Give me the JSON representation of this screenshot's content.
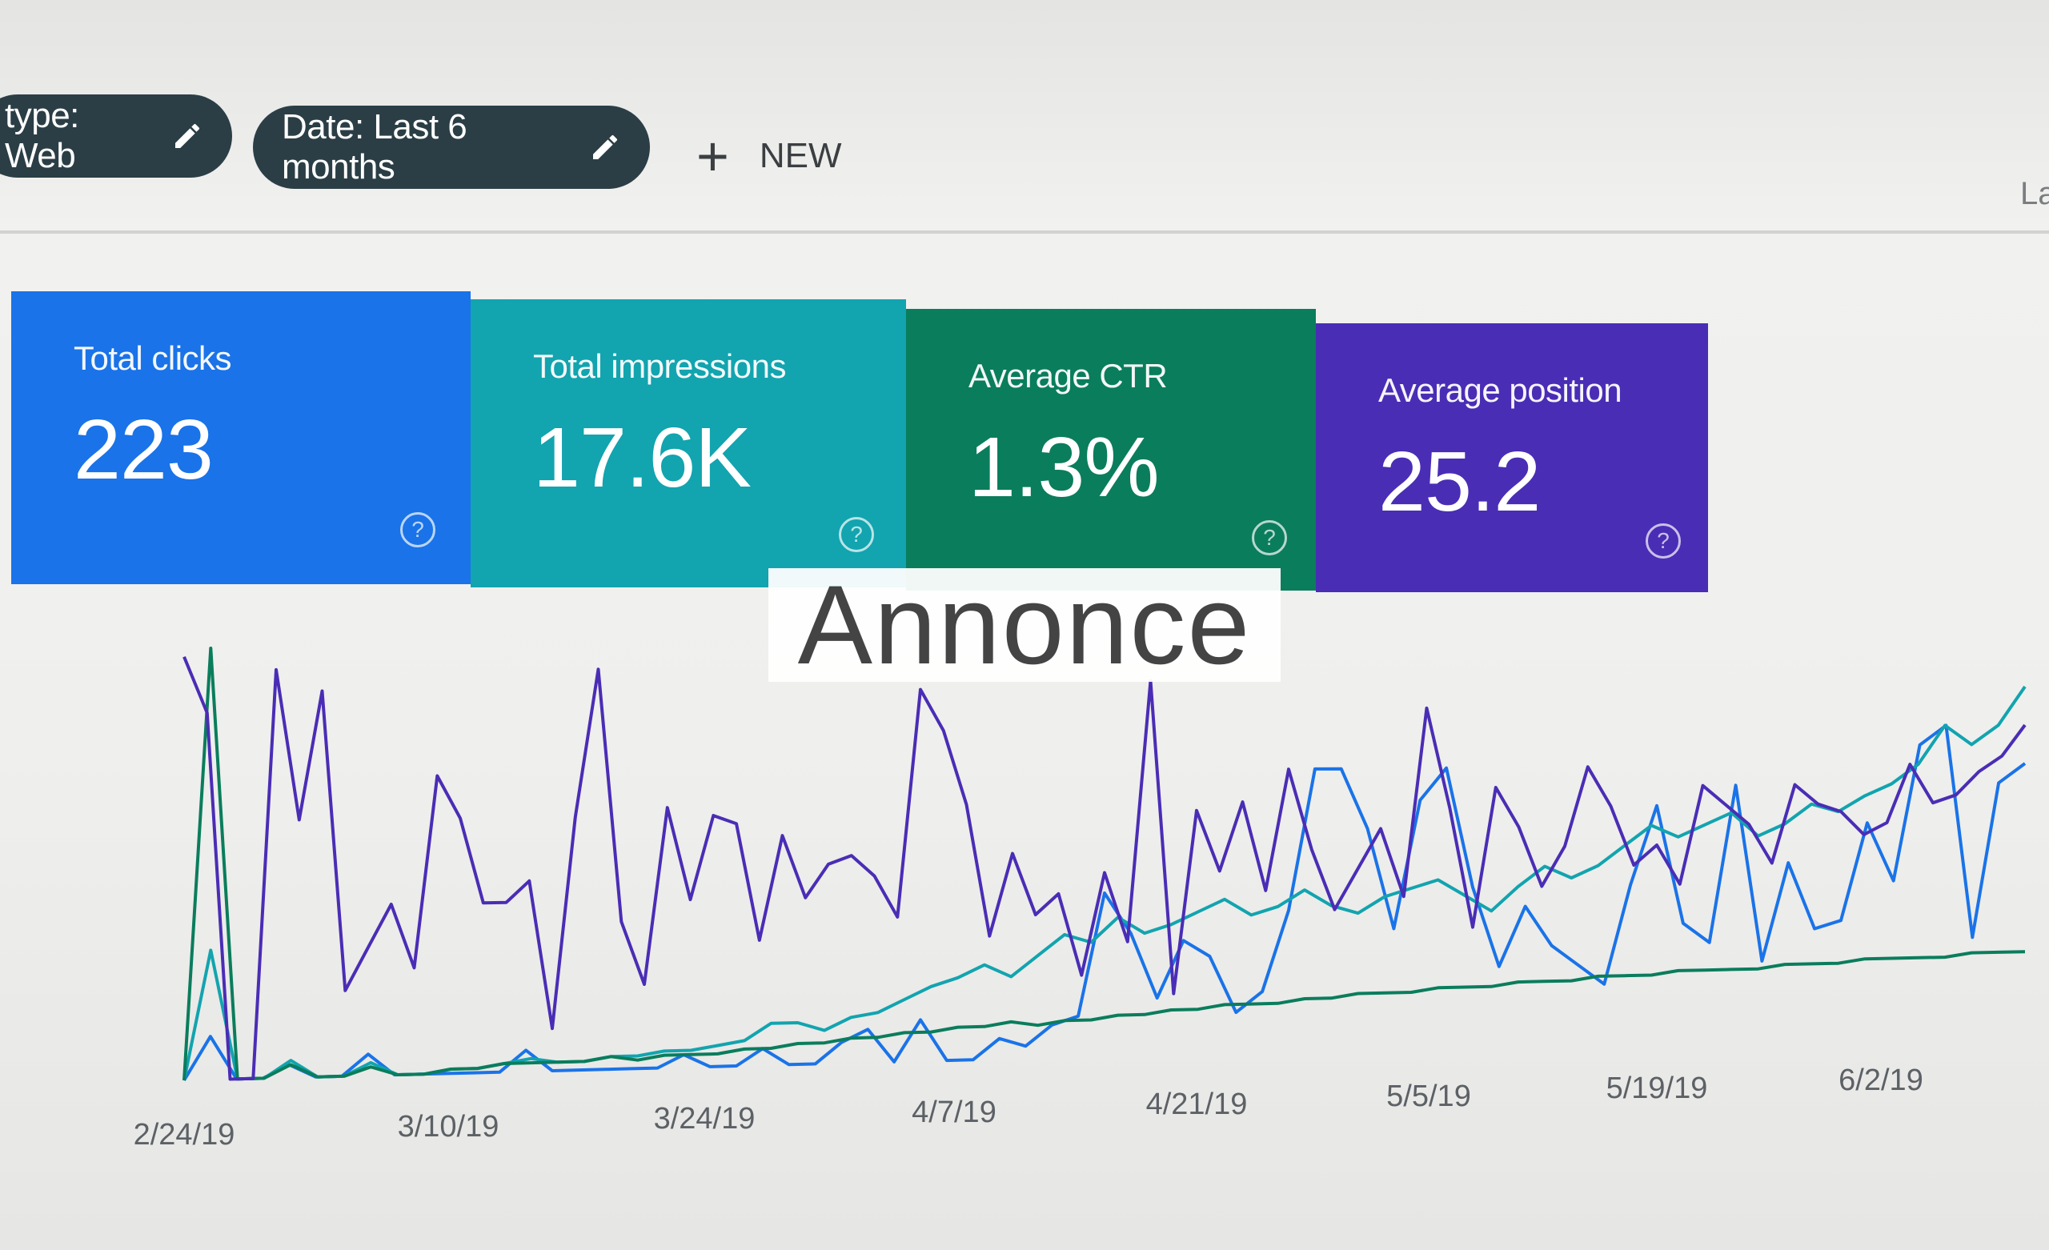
{
  "filters": {
    "type_chip": "type: Web",
    "date_chip": "Date: Last 6 months",
    "new_button": "NEW",
    "right_clip_label": "La"
  },
  "metrics": [
    {
      "label": "Total clicks",
      "value": "223",
      "color": "#1a73e8"
    },
    {
      "label": "Total impressions",
      "value": "17.6K",
      "color": "#12a4af"
    },
    {
      "label": "Average CTR",
      "value": "1.3%",
      "color": "#0a7d5c"
    },
    {
      "label": "Average position",
      "value": "25.2",
      "color": "#4a2db5"
    }
  ],
  "overlay": {
    "text": "Annonce"
  },
  "chart_data": {
    "type": "line",
    "x_tick_labels": [
      "2/24/19",
      "3/10/19",
      "3/24/19",
      "4/7/19",
      "4/21/19",
      "5/5/19",
      "5/19/19",
      "6/2/19"
    ],
    "ylim": [
      0,
      100
    ],
    "series": [
      {
        "name": "Total clicks",
        "color": "#1a73e8",
        "values": [
          0,
          10,
          0,
          0,
          3,
          0,
          0,
          5,
          0,
          0,
          0,
          0,
          0,
          5,
          0,
          0,
          0,
          0,
          0,
          3,
          0,
          0,
          4,
          0,
          0,
          5,
          8,
          0,
          10,
          0,
          0,
          5,
          3,
          8,
          10,
          40,
          30,
          14,
          28,
          24,
          10,
          15,
          35,
          70,
          70,
          55,
          30,
          62,
          70,
          40,
          20,
          35,
          25,
          20,
          15,
          40,
          60,
          30,
          25,
          65,
          20,
          45,
          28,
          30,
          55,
          40,
          75,
          80,
          25,
          65,
          70
        ]
      },
      {
        "name": "Total impressions",
        "color": "#12a4af",
        "values": [
          0,
          30,
          0,
          0,
          4,
          0,
          0,
          3,
          0,
          0,
          1,
          1,
          2,
          3,
          2,
          2,
          3,
          3,
          4,
          4,
          5,
          6,
          10,
          10,
          8,
          11,
          12,
          15,
          18,
          20,
          23,
          20,
          25,
          30,
          28,
          34,
          30,
          32,
          35,
          38,
          34,
          36,
          40,
          36,
          34,
          38,
          40,
          42,
          38,
          34,
          40,
          45,
          42,
          45,
          50,
          55,
          52,
          55,
          58,
          52,
          55,
          60,
          58,
          62,
          65,
          70,
          80,
          75,
          80,
          90
        ]
      },
      {
        "name": "Average CTR",
        "color": "#0a7d5c",
        "values": [
          0,
          100,
          0,
          0,
          3,
          0,
          0,
          2,
          0,
          0,
          1,
          1,
          2,
          2,
          2,
          2,
          3,
          2,
          3,
          3,
          3,
          4,
          4,
          5,
          5,
          6,
          6,
          7,
          7,
          8,
          8,
          9,
          8,
          9,
          9,
          10,
          10,
          11,
          11,
          12,
          12,
          12,
          13,
          13,
          14,
          14,
          14,
          15,
          15,
          15,
          16,
          16,
          16,
          17,
          17,
          17,
          18,
          18,
          18,
          18,
          19,
          19,
          19,
          20,
          20,
          20,
          20,
          21,
          21,
          21
        ]
      },
      {
        "name": "Average position",
        "color": "#4a2db5",
        "values": [
          98,
          85,
          0,
          0,
          95,
          60,
          90,
          20,
          30,
          40,
          25,
          70,
          60,
          40,
          40,
          45,
          10,
          60,
          95,
          35,
          20,
          62,
          40,
          60,
          58,
          30,
          55,
          40,
          48,
          50,
          45,
          35,
          90,
          80,
          62,
          30,
          50,
          35,
          40,
          20,
          45,
          28,
          92,
          15,
          60,
          45,
          62,
          40,
          70,
          50,
          35,
          45,
          55,
          38,
          85,
          60,
          30,
          65,
          55,
          40,
          50,
          70,
          60,
          45,
          50,
          40,
          65,
          60,
          55,
          45,
          65,
          60,
          58,
          52,
          55,
          70,
          60,
          62,
          68,
          72,
          80
        ]
      }
    ]
  }
}
